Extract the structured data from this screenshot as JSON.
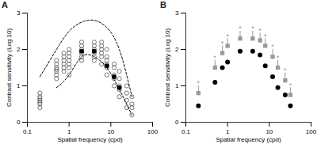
{
  "chart_data": [
    {
      "type": "scatter",
      "title": "A",
      "x_label": "Spatial frequency (cpd)",
      "y_label": "Contrast sensitivity (Log 10)",
      "log": "x",
      "xlim": [
        0.1,
        100
      ],
      "xticks": [
        0.1,
        1,
        10,
        100
      ],
      "ylim": [
        0,
        3
      ],
      "yticks": [
        0,
        1,
        2,
        3
      ],
      "series": [
        {
          "type": "scatter",
          "marker": "open_circle",
          "color": "#555555",
          "x": [
            0.2,
            0.2,
            0.2,
            0.2,
            0.2,
            0.2,
            0.2,
            0.5,
            0.5,
            0.5,
            0.5,
            0.5,
            0.5,
            0.5,
            0.75,
            0.75,
            0.75,
            0.75,
            0.75,
            0.75,
            1,
            1,
            1,
            1,
            1,
            1,
            1,
            2,
            2,
            2,
            2,
            2,
            2,
            4,
            4,
            4,
            4,
            4,
            4,
            6,
            6,
            6,
            6,
            6,
            6,
            8,
            8,
            8,
            8,
            8,
            8,
            12,
            12,
            12,
            12,
            12,
            16,
            16,
            16,
            16,
            16,
            24,
            24,
            24,
            24,
            32,
            32,
            32,
            32
          ],
          "values": [
            0.4,
            0.5,
            0.55,
            0.6,
            0.65,
            0.7,
            0.8,
            1.2,
            1.3,
            1.4,
            1.45,
            1.5,
            1.6,
            1.7,
            1.4,
            1.5,
            1.6,
            1.7,
            1.8,
            1.9,
            1.3,
            1.5,
            1.6,
            1.7,
            1.8,
            1.9,
            2.0,
            1.7,
            1.8,
            1.9,
            2.0,
            2.1,
            2.2,
            1.7,
            1.8,
            1.9,
            2.0,
            2.1,
            2.2,
            1.6,
            1.8,
            1.9,
            2.0,
            2.1,
            2.2,
            1.3,
            1.5,
            1.6,
            1.7,
            1.8,
            2.0,
            1.0,
            1.2,
            1.3,
            1.5,
            1.6,
            0.7,
            0.9,
            1.0,
            1.2,
            1.4,
            0.4,
            0.6,
            0.8,
            1.0,
            0.2,
            0.4,
            0.5,
            0.7
          ]
        },
        {
          "type": "scatter",
          "marker": "filled_circle",
          "color": "#000000",
          "x": [
            2,
            4,
            8,
            12,
            16
          ],
          "values": [
            1.95,
            1.95,
            1.55,
            1.25,
            0.95
          ]
        },
        {
          "type": "line",
          "line_style": "dashed",
          "color": "#000000",
          "x": [
            0.2,
            0.5,
            1,
            2,
            4,
            8,
            16,
            32
          ],
          "values": [
            1.25,
            2.0,
            2.5,
            2.75,
            2.8,
            2.6,
            2.0,
            0.7
          ]
        },
        {
          "type": "line",
          "line_style": "dashed",
          "color": "#000000",
          "x": [
            0.5,
            1,
            2,
            4,
            8,
            16,
            32
          ],
          "values": [
            0.95,
            1.3,
            1.8,
            1.8,
            1.5,
            0.9,
            0.2
          ]
        }
      ]
    },
    {
      "type": "scatter",
      "title": "B",
      "x_label": "Spatial frequency (cpd)",
      "y_label": "Contrast sensitivity (Log 10)",
      "log": "x",
      "xlim": [
        0.1,
        100
      ],
      "xticks": [
        0.1,
        1,
        10,
        100
      ],
      "ylim": [
        0,
        3
      ],
      "yticks": [
        0,
        1,
        2,
        3
      ],
      "series": [
        {
          "type": "scatter",
          "marker": "filled_circle",
          "color": "#000000",
          "x": [
            0.2,
            0.5,
            0.75,
            1,
            2,
            4,
            6,
            8,
            12,
            16,
            24,
            32
          ],
          "values": [
            0.45,
            1.1,
            1.5,
            1.65,
            1.95,
            1.95,
            1.85,
            1.55,
            1.25,
            0.95,
            0.75,
            0.45
          ]
        },
        {
          "type": "scatter",
          "marker": "square",
          "color": "#999999",
          "x": [
            0.2,
            0.5,
            0.75,
            1,
            2,
            4,
            6,
            8,
            12,
            16,
            24,
            32
          ],
          "values": [
            0.8,
            1.5,
            1.9,
            2.1,
            2.3,
            2.3,
            2.25,
            2.1,
            1.8,
            1.5,
            1.15,
            0.75
          ],
          "errors": [
            0.2,
            0.2,
            0.2,
            0.2,
            0.2,
            0.2,
            0.2,
            0.2,
            0.2,
            0.2,
            0.2,
            0.2
          ],
          "significance_labels": [
            "*",
            "*",
            "*",
            "*",
            "*",
            "*",
            "*",
            "*",
            "*",
            "*",
            "*",
            "*"
          ]
        }
      ]
    }
  ]
}
